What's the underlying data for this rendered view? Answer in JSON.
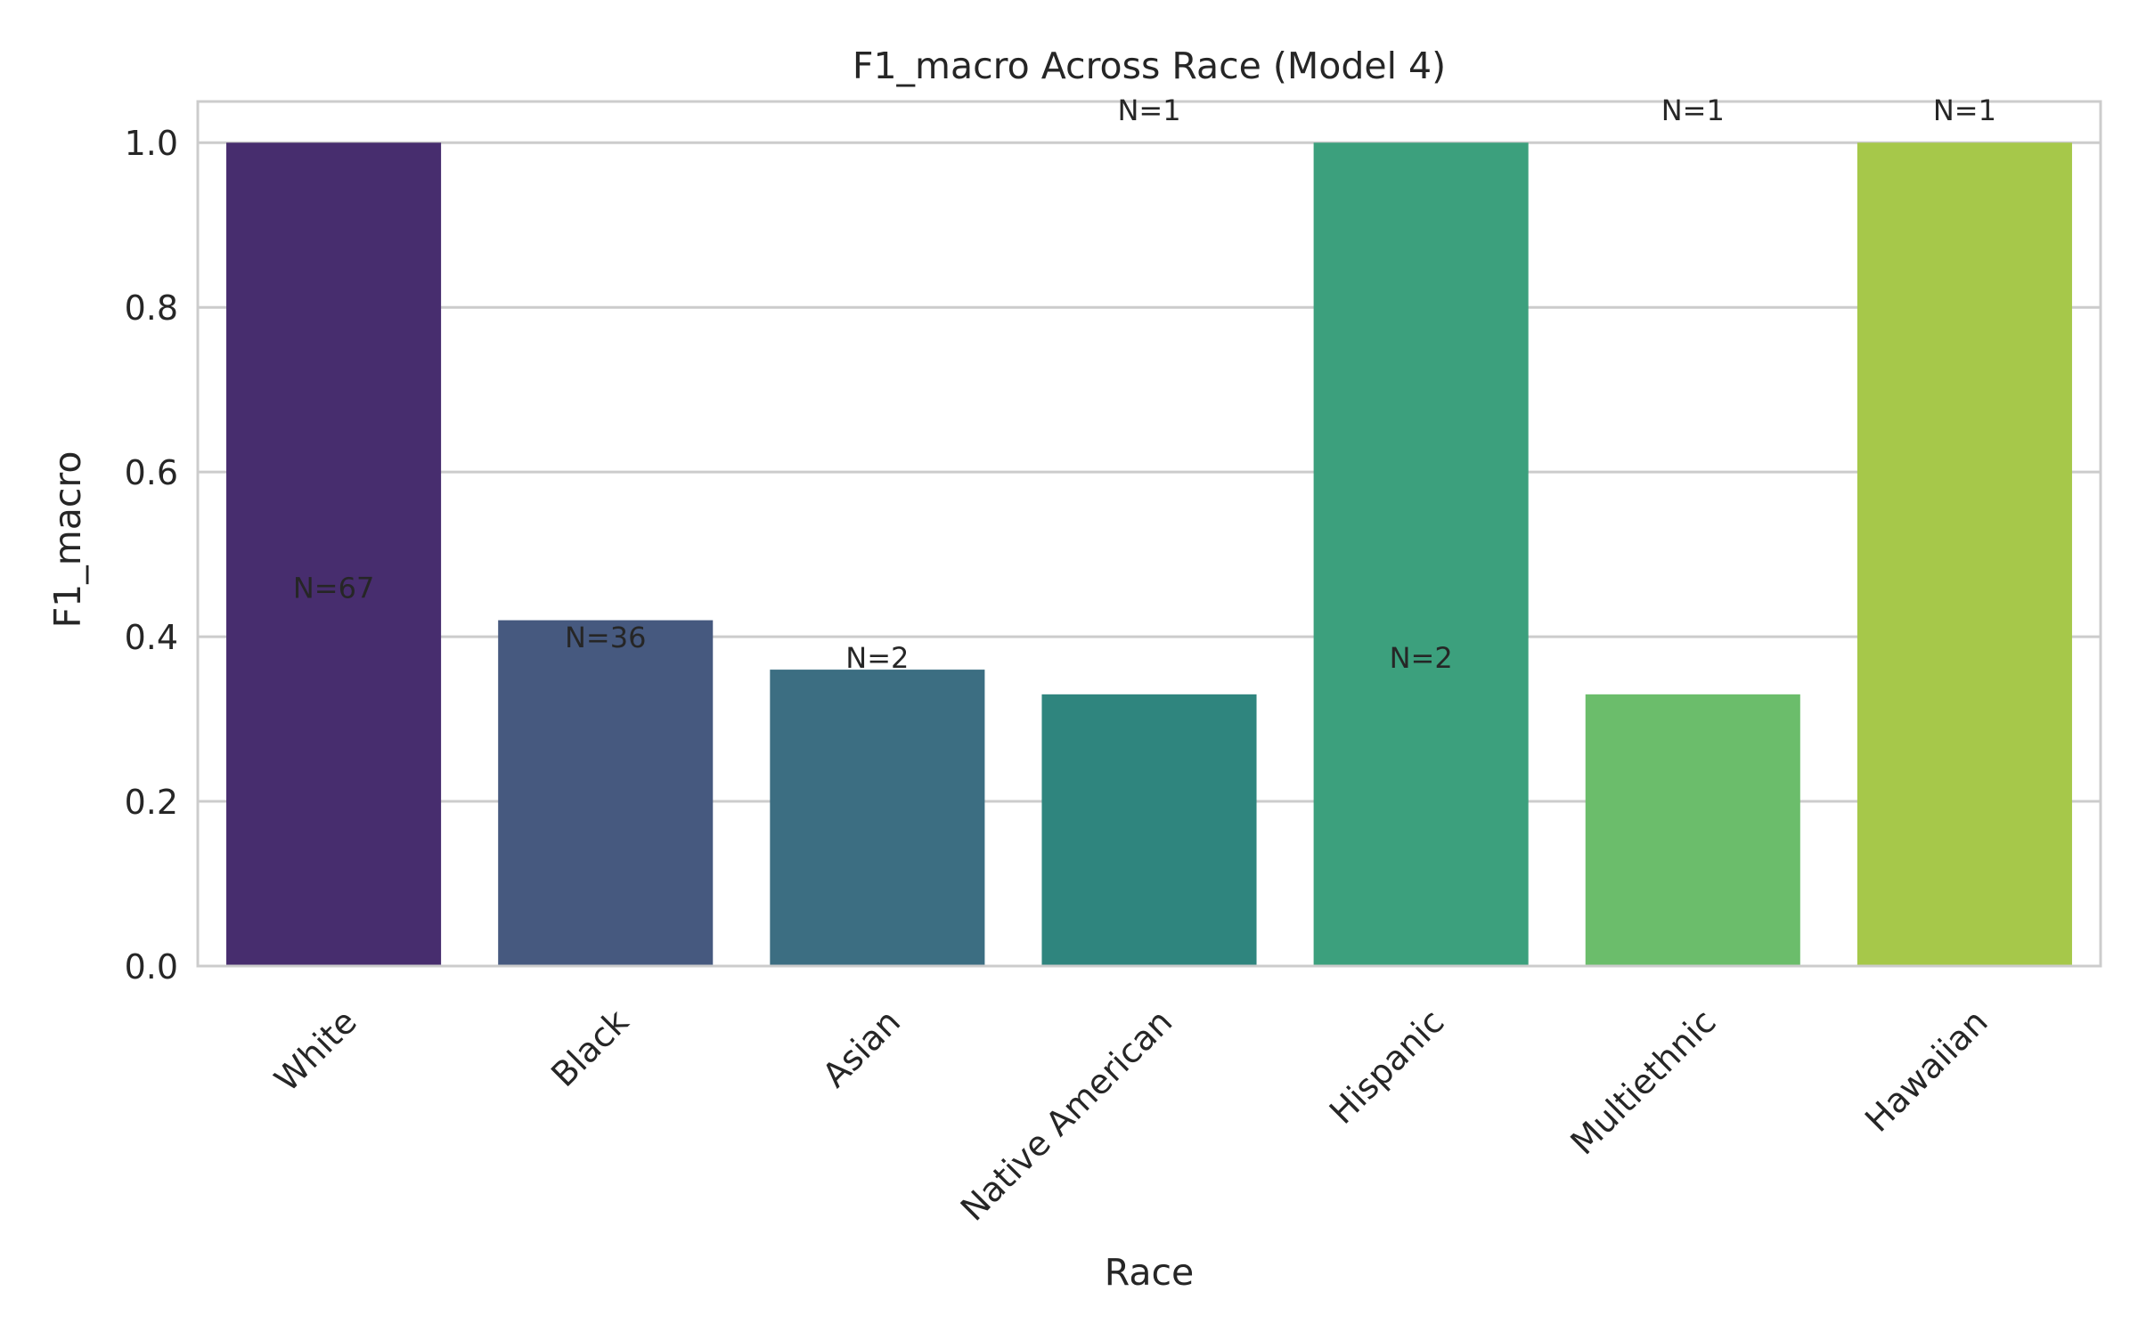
{
  "chart_data": {
    "type": "bar",
    "title": "F1_macro Across Race (Model 4)",
    "xlabel": "Race",
    "ylabel": "F1_macro",
    "categories": [
      "White",
      "Black",
      "Asian",
      "Native American",
      "Hispanic",
      "Multiethnic",
      "Hawaiian"
    ],
    "values": [
      1.0,
      0.42,
      0.36,
      0.33,
      1.0,
      0.33,
      1.0
    ],
    "annotations": [
      "N=67",
      "N=36",
      "N=2",
      "N=1",
      "N=2",
      "N=1",
      "N=1"
    ],
    "annotation_values": [
      0.46,
      0.4,
      0.375,
      1.04,
      0.375,
      1.04,
      1.04
    ],
    "colors": [
      "#472d6e",
      "#46597f",
      "#3c6e82",
      "#2f857e",
      "#3ca07d",
      "#6bbd6b",
      "#a6c84a"
    ],
    "ylim": [
      0,
      1.05
    ],
    "yticks": [
      0.0,
      0.2,
      0.4,
      0.6,
      0.8,
      1.0
    ],
    "ytick_labels": [
      "0.0",
      "0.2",
      "0.4",
      "0.6",
      "0.8",
      "1.0"
    ],
    "grid": true,
    "legend": "none"
  }
}
